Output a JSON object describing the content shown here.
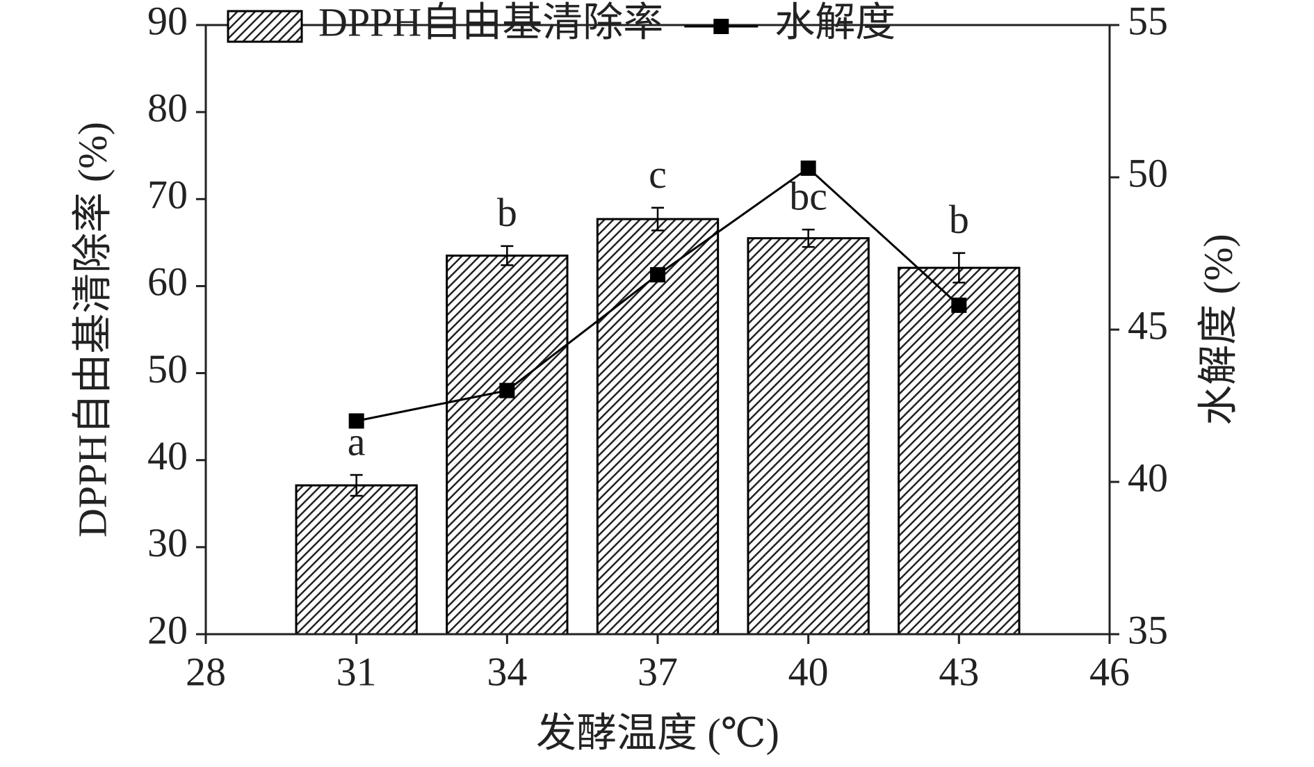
{
  "chart_data": {
    "type": "bar",
    "x_label": "发酵温度 (℃)",
    "y_label": "DPPH自由基清除率 (%)",
    "y2_label": "水解度 (%)",
    "x": [
      31,
      34,
      37,
      40,
      43
    ],
    "xlim": [
      28,
      46
    ],
    "xticks": [
      28,
      31,
      34,
      37,
      40,
      43,
      46
    ],
    "ylim": [
      20,
      90
    ],
    "yticks": [
      20,
      30,
      40,
      50,
      60,
      70,
      80,
      90
    ],
    "y2lim": [
      35,
      55
    ],
    "y2ticks": [
      35,
      40,
      45,
      50,
      55
    ],
    "series": [
      {
        "name": "DPPH自由基清除率",
        "type": "bar",
        "color": "#000000",
        "values": [
          37.1,
          63.5,
          67.7,
          65.5,
          62.1
        ],
        "errors": [
          1.2,
          1.1,
          1.3,
          1.0,
          1.7
        ],
        "annotations": [
          "a",
          "b",
          "c",
          "bc",
          "b"
        ]
      },
      {
        "name": "水解度",
        "type": "line",
        "axis": "y2",
        "color": "#000000",
        "values": [
          42.0,
          43.0,
          46.8,
          50.3,
          45.8
        ]
      }
    ]
  }
}
